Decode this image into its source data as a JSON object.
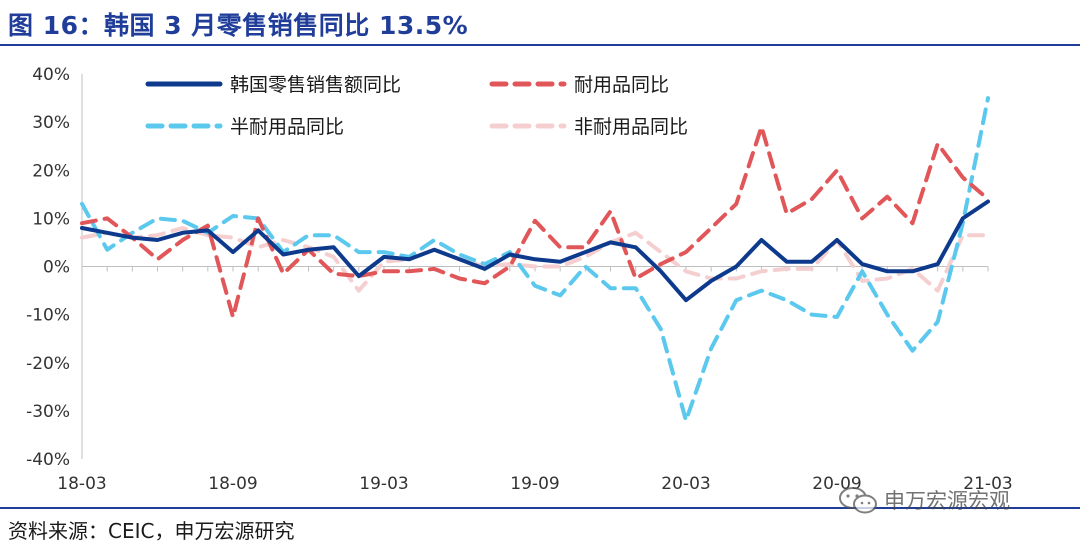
{
  "title": "图 16：韩国 3 月零售销售同比 13.5%",
  "source": "资料来源：CEIC，申万宏源研究",
  "watermark": "申万宏源宏观",
  "chart_data": {
    "type": "line",
    "ylim": [
      -40,
      40
    ],
    "yticks": [
      "40%",
      "30%",
      "20%",
      "10%",
      "0%",
      "-10%",
      "-20%",
      "-30%",
      "-40%"
    ],
    "ytick_values": [
      40,
      30,
      20,
      10,
      0,
      -10,
      -20,
      -30,
      -40
    ],
    "xticks": [
      "18-03",
      "18-09",
      "19-03",
      "19-09",
      "20-03",
      "20-09",
      "21-03"
    ],
    "x": [
      "18-03",
      "18-04",
      "18-05",
      "18-06",
      "18-07",
      "18-08",
      "18-09",
      "18-10",
      "18-11",
      "18-12",
      "19-01",
      "19-02",
      "19-03",
      "19-04",
      "19-05",
      "19-06",
      "19-07",
      "19-08",
      "19-09",
      "19-10",
      "19-11",
      "19-12",
      "20-01",
      "20-02",
      "20-03",
      "20-04",
      "20-05",
      "20-06",
      "20-07",
      "20-08",
      "20-09",
      "20-10",
      "20-11",
      "20-12",
      "21-01",
      "21-02",
      "21-03"
    ],
    "legend_position": "top",
    "series": [
      {
        "name": "韩国零售销售额同比",
        "color": "#0d3a8c",
        "dash": "solid",
        "values": [
          8,
          7,
          6,
          5.5,
          7,
          7.5,
          3,
          7.5,
          2.5,
          3.5,
          4,
          -2,
          2,
          1.5,
          3.5,
          1.5,
          -0.5,
          2.5,
          1.5,
          1,
          3,
          5,
          4,
          -1,
          -7,
          -3,
          0,
          5.5,
          1,
          1,
          5.5,
          0.5,
          -1,
          -1,
          0.5,
          10,
          13.5
        ]
      },
      {
        "name": "耐用品同比",
        "color": "#e15759",
        "dash": "long",
        "values": [
          9,
          10,
          6,
          1.5,
          5.5,
          8.5,
          -10.5,
          10,
          -1.5,
          3.5,
          -1.5,
          -2,
          -1,
          -1,
          -0.5,
          -2.5,
          -3.5,
          0,
          9.5,
          4,
          4,
          11.5,
          -2.5,
          0.5,
          3,
          8,
          13,
          29,
          11,
          14,
          20,
          10,
          14.5,
          9,
          25.5,
          18.5,
          14
        ]
      },
      {
        "name": "半耐用品同比",
        "color": "#5bc8ee",
        "dash": "long",
        "values": [
          13,
          3.5,
          7,
          10,
          9.5,
          7,
          10.5,
          10,
          3,
          6.5,
          6.5,
          3,
          3,
          2,
          5.5,
          2.5,
          0.5,
          3,
          -4,
          -6,
          0,
          -4.5,
          -4.5,
          -13,
          -32,
          -17,
          -7,
          -5,
          -7,
          -10,
          -10.5,
          -1,
          -10,
          -17.5,
          -11.5,
          9,
          35
        ]
      },
      {
        "name": "非耐用品同比",
        "color": "#f5cfcf",
        "dash": "long",
        "values": [
          6,
          7,
          6,
          6.5,
          8,
          6.5,
          6,
          4,
          5.5,
          4,
          2,
          -5,
          1,
          1.5,
          3.5,
          1.5,
          0,
          0.5,
          0,
          0,
          2,
          5,
          7,
          3,
          -1,
          -2.5,
          -2.5,
          -1,
          -0.5,
          -0.5,
          5.5,
          -3,
          -2.5,
          -0.5,
          -5,
          6.5,
          6.5
        ]
      }
    ]
  }
}
